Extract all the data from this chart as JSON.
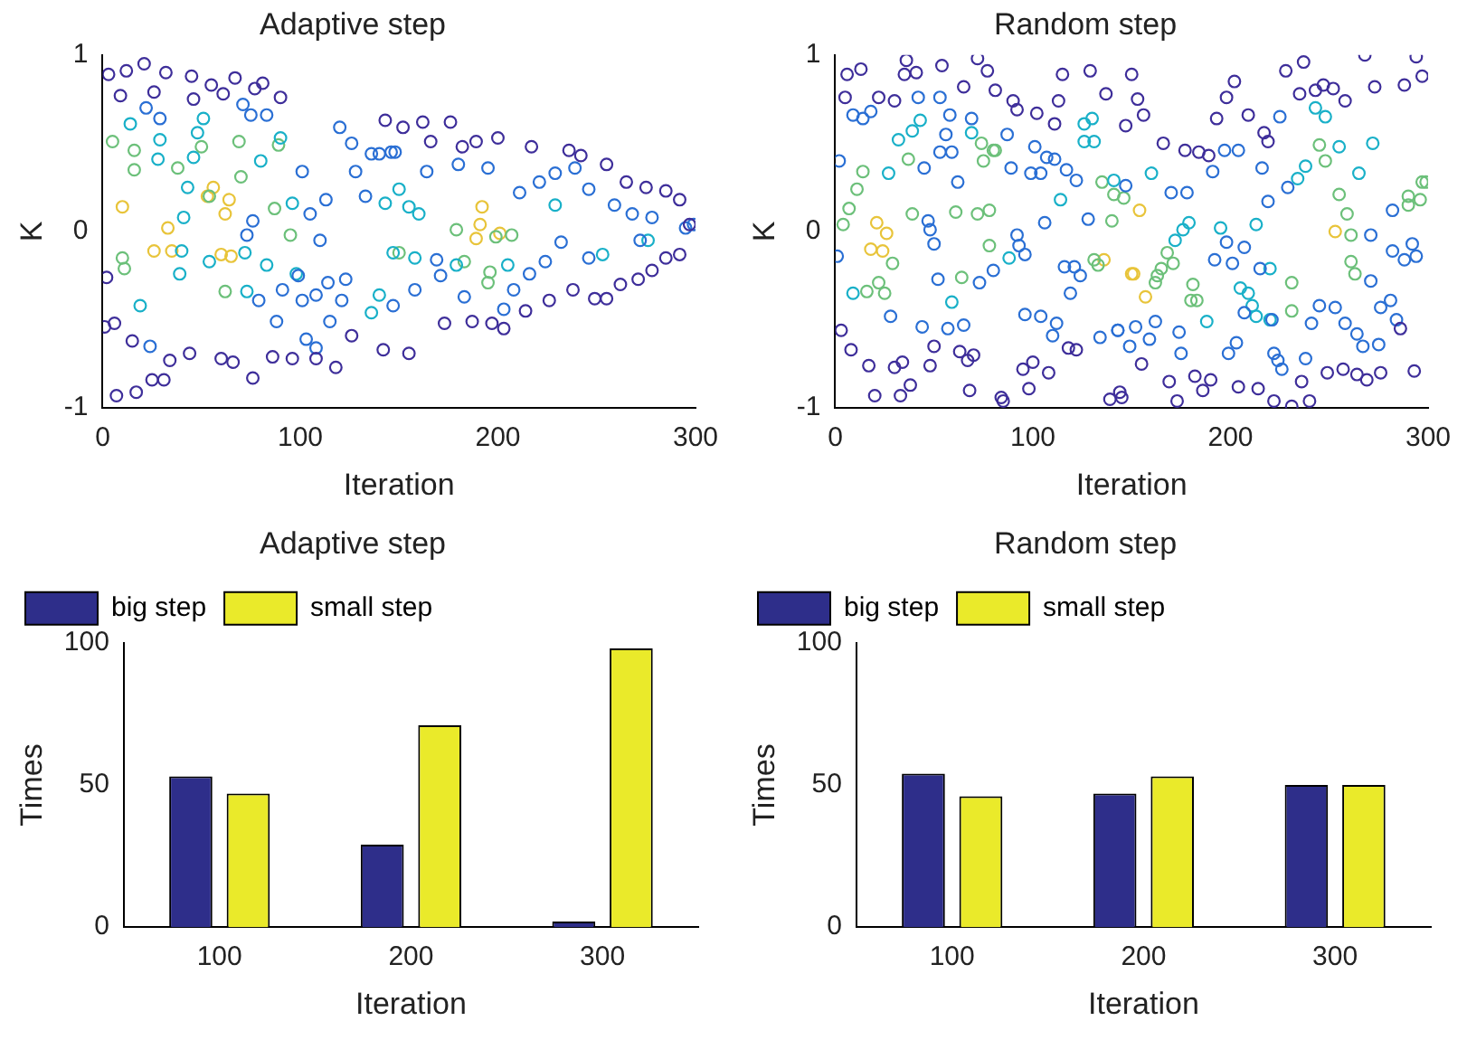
{
  "chart_data": [
    {
      "type": "scatter",
      "title": "Adaptive step",
      "xlabel": "Iteration",
      "ylabel": "K",
      "xlim": [
        0,
        300
      ],
      "ylim": [
        -1,
        1
      ],
      "xticks": [
        0,
        100,
        200,
        300
      ],
      "yticks": [
        -1,
        0,
        1
      ],
      "grid": false,
      "legend": false,
      "marker": "circle",
      "series": [
        {
          "color": "#3e2e9a",
          "x": [
            3,
            12,
            21,
            32,
            45,
            55,
            67,
            81,
            77,
            61,
            26,
            9,
            46,
            90,
            7,
            17,
            25,
            31,
            44,
            34,
            15,
            60,
            76,
            66,
            86,
            96,
            108,
            118,
            126,
            1,
            6,
            2,
            143,
            152,
            162,
            176,
            166,
            182,
            189,
            200,
            217,
            236,
            242,
            255,
            265,
            275,
            285,
            292,
            297,
            173,
            187,
            197,
            203,
            214,
            226,
            238,
            249,
            255,
            262,
            271,
            278,
            285,
            292,
            142,
            155
          ],
          "values": [
            0.89,
            0.91,
            0.95,
            0.9,
            0.88,
            0.83,
            0.87,
            0.84,
            0.81,
            0.78,
            0.79,
            0.77,
            0.75,
            0.76,
            -0.93,
            -0.91,
            -0.84,
            -0.84,
            -0.69,
            -0.73,
            -0.62,
            -0.72,
            -0.83,
            -0.74,
            -0.71,
            -0.72,
            -0.72,
            -0.77,
            -0.59,
            -0.54,
            -0.52,
            -0.26,
            0.63,
            0.59,
            0.62,
            0.62,
            0.51,
            0.48,
            0.51,
            0.53,
            0.48,
            0.46,
            0.43,
            0.38,
            0.28,
            0.25,
            0.23,
            0.18,
            0.04,
            -0.52,
            -0.51,
            -0.52,
            -0.55,
            -0.45,
            -0.39,
            -0.33,
            -0.38,
            -0.38,
            -0.3,
            -0.27,
            -0.22,
            -0.15,
            -0.13,
            -0.67,
            -0.69
          ]
        },
        {
          "color": "#2a6fd4",
          "x": [
            22,
            29,
            71,
            75,
            83,
            101,
            120,
            126,
            136,
            148,
            128,
            133,
            113,
            105,
            76,
            73,
            110,
            99,
            114,
            123,
            121,
            108,
            101,
            91,
            79,
            88,
            115,
            103,
            108,
            24,
            140,
            146,
            180,
            195,
            164,
            211,
            221,
            229,
            239,
            246,
            259,
            268,
            278,
            295,
            299,
            232,
            224,
            216,
            208,
            203,
            183,
            171,
            169,
            158,
            147,
            246,
            272
          ],
          "values": [
            0.7,
            0.64,
            0.72,
            0.66,
            0.66,
            0.34,
            0.59,
            0.5,
            0.44,
            0.45,
            0.34,
            0.2,
            0.18,
            0.1,
            0.06,
            -0.02,
            -0.05,
            -0.25,
            -0.29,
            -0.27,
            -0.39,
            -0.36,
            -0.39,
            -0.33,
            -0.39,
            -0.51,
            -0.51,
            -0.61,
            -0.66,
            -0.65,
            0.44,
            0.45,
            0.38,
            0.36,
            0.34,
            0.22,
            0.28,
            0.33,
            0.36,
            0.24,
            0.15,
            0.1,
            0.08,
            0.02,
            0.04,
            -0.06,
            -0.17,
            -0.24,
            -0.33,
            -0.44,
            -0.37,
            -0.25,
            -0.16,
            -0.33,
            -0.42,
            -0.15,
            -0.05
          ]
        },
        {
          "color": "#19b0c8",
          "x": [
            14,
            29,
            51,
            48,
            28,
            46,
            80,
            90,
            43,
            41,
            40,
            39,
            54,
            73,
            83,
            98,
            140,
            136,
            19,
            72,
            96,
            150,
            143,
            160,
            147,
            158,
            179,
            205,
            229,
            253,
            276,
            155
          ],
          "values": [
            0.61,
            0.52,
            0.64,
            0.56,
            0.41,
            0.42,
            0.4,
            0.53,
            0.25,
            0.08,
            -0.11,
            -0.24,
            -0.17,
            -0.34,
            -0.19,
            -0.24,
            -0.36,
            -0.46,
            -0.42,
            -0.12,
            0.16,
            0.24,
            0.16,
            0.1,
            -0.12,
            -0.15,
            -0.19,
            -0.19,
            0.15,
            -0.13,
            -0.05,
            0.14
          ]
        },
        {
          "color": "#6cc07a",
          "x": [
            5,
            16,
            38,
            50,
            69,
            89,
            70,
            95,
            10,
            11,
            62,
            150,
            16,
            87,
            54,
            179,
            195,
            196,
            183,
            207,
            199
          ],
          "values": [
            0.51,
            0.46,
            0.36,
            0.48,
            0.51,
            0.49,
            0.31,
            -0.02,
            -0.15,
            -0.21,
            -0.34,
            -0.12,
            0.35,
            0.13,
            0.2,
            0.01,
            -0.29,
            -0.23,
            -0.17,
            -0.02,
            -0.03
          ]
        },
        {
          "color": "#e8c43a",
          "x": [
            10,
            56,
            64,
            62,
            33,
            26,
            35,
            60,
            65,
            53,
            192,
            191,
            189,
            201
          ],
          "values": [
            0.14,
            0.25,
            0.18,
            0.1,
            0.02,
            -0.11,
            -0.11,
            -0.13,
            -0.14,
            0.2,
            0.14,
            0.04,
            -0.04,
            -0.01
          ]
        }
      ]
    },
    {
      "type": "scatter",
      "title": "Random step",
      "xlabel": "Iteration",
      "ylabel": "K",
      "xlim": [
        0,
        300
      ],
      "ylim": [
        -1,
        1
      ],
      "xticks": [
        0,
        100,
        200,
        300
      ],
      "yticks": [
        -1,
        0,
        1
      ],
      "grid": false,
      "legend": false,
      "marker": "circle",
      "series": [
        {
          "color": "#3e2e9a",
          "x": [
            6,
            13,
            36,
            41,
            54,
            72,
            77,
            35,
            5,
            22,
            30,
            65,
            81,
            90,
            92,
            115,
            129,
            137,
            113,
            102,
            111,
            3,
            8,
            17,
            30,
            34,
            38,
            48,
            50,
            63,
            67,
            70,
            68,
            20,
            33,
            84,
            85,
            98,
            95,
            100,
            108,
            118,
            122,
            144,
            139,
            150,
            153,
            156,
            147,
            166,
            177,
            184,
            189,
            202,
            198,
            193,
            209,
            217,
            219,
            228,
            237,
            235,
            243,
            247,
            252,
            258,
            268,
            273,
            288,
            294,
            297,
            155,
            145,
            169,
            173,
            182,
            186,
            190,
            204,
            214,
            222,
            231,
            240,
            236,
            249,
            257,
            264,
            269,
            276,
            293,
            286
          ],
          "values": [
            0.89,
            0.92,
            0.97,
            0.9,
            0.94,
            0.98,
            0.91,
            0.89,
            0.76,
            0.76,
            0.74,
            0.82,
            0.8,
            0.74,
            0.69,
            0.89,
            0.91,
            0.78,
            0.74,
            0.67,
            0.61,
            -0.56,
            -0.67,
            -0.76,
            -0.77,
            -0.74,
            -0.87,
            -0.76,
            -0.65,
            -0.68,
            -0.73,
            -0.7,
            -0.9,
            -0.93,
            -0.93,
            -0.94,
            -0.96,
            -0.89,
            -0.78,
            -0.74,
            -0.8,
            -0.66,
            -0.67,
            -0.91,
            -0.95,
            0.89,
            0.75,
            0.66,
            0.6,
            0.5,
            0.46,
            0.45,
            0.43,
            0.85,
            0.76,
            0.64,
            0.66,
            0.56,
            0.51,
            0.91,
            0.96,
            0.78,
            0.8,
            0.83,
            0.81,
            0.74,
            1.0,
            0.82,
            0.83,
            0.99,
            0.88,
            -0.75,
            -0.94,
            -0.85,
            -0.96,
            -0.82,
            -0.9,
            -0.84,
            -0.88,
            -0.89,
            -0.96,
            -0.99,
            -0.96,
            -0.85,
            -0.8,
            -0.78,
            -0.81,
            -0.84,
            -0.8,
            -0.79,
            -0.55
          ]
        },
        {
          "color": "#2a6fd4",
          "x": [
            9,
            14,
            18,
            42,
            53,
            58,
            69,
            56,
            53,
            59,
            45,
            2,
            62,
            89,
            99,
            104,
            101,
            107,
            111,
            117,
            122,
            87,
            47,
            48,
            50,
            92,
            93,
            96,
            106,
            128,
            116,
            121,
            124,
            119,
            73,
            80,
            52,
            28,
            44,
            57,
            65,
            96,
            104,
            112,
            110,
            134,
            143,
            1,
            147,
            170,
            178,
            191,
            216,
            225,
            229,
            219,
            197,
            204,
            282,
            271,
            282,
            292,
            294,
            288,
            271,
            281,
            276,
            284,
            275,
            267,
            264,
            258,
            253,
            245,
            241,
            238,
            226,
            222,
            224,
            199,
            203,
            175,
            174,
            162,
            159,
            149,
            152,
            143,
            221,
            207,
            215,
            201,
            192,
            207,
            198
          ],
          "values": [
            0.66,
            0.64,
            0.68,
            0.76,
            0.76,
            0.66,
            0.64,
            0.55,
            0.45,
            0.45,
            0.36,
            0.4,
            0.28,
            0.36,
            0.33,
            0.33,
            0.48,
            0.42,
            0.41,
            0.35,
            0.29,
            0.55,
            0.06,
            0.01,
            -0.07,
            -0.02,
            -0.08,
            -0.13,
            0.05,
            0.07,
            -0.2,
            -0.2,
            -0.25,
            -0.35,
            -0.29,
            -0.22,
            -0.27,
            -0.48,
            -0.54,
            -0.55,
            -0.53,
            -0.47,
            -0.48,
            -0.52,
            -0.59,
            -0.6,
            -0.56,
            -0.14,
            0.26,
            0.22,
            0.22,
            0.34,
            0.36,
            0.65,
            0.25,
            0.17,
            0.46,
            0.46,
            0.12,
            -0.02,
            -0.11,
            -0.07,
            -0.14,
            -0.16,
            -0.28,
            -0.39,
            -0.43,
            -0.5,
            -0.64,
            -0.65,
            -0.58,
            -0.52,
            -0.43,
            -0.42,
            -0.52,
            -0.72,
            -0.78,
            -0.69,
            -0.73,
            -0.69,
            -0.63,
            -0.69,
            -0.57,
            -0.51,
            -0.61,
            -0.65,
            -0.54,
            -0.56,
            -0.5,
            -0.46,
            -0.21,
            -0.18,
            -0.16,
            -0.09,
            -0.06
          ]
        },
        {
          "color": "#19b0c8",
          "x": [
            32,
            39,
            43,
            69,
            126,
            130,
            126,
            131,
            27,
            114,
            59,
            9,
            88,
            160,
            179,
            176,
            172,
            195,
            213,
            234,
            238,
            243,
            248,
            255,
            272,
            265,
            205,
            209,
            211,
            213,
            220,
            220,
            188,
            141
          ],
          "values": [
            0.52,
            0.57,
            0.63,
            0.56,
            0.61,
            0.64,
            0.51,
            0.51,
            0.33,
            0.18,
            -0.4,
            -0.35,
            -0.15,
            0.33,
            0.05,
            0.01,
            -0.05,
            0.02,
            0.04,
            0.3,
            0.37,
            0.7,
            0.65,
            0.48,
            0.5,
            0.33,
            -0.32,
            -0.35,
            -0.42,
            -0.48,
            -0.21,
            -0.5,
            -0.51,
            0.29
          ]
        },
        {
          "color": "#6cc07a",
          "x": [
            37,
            14,
            11,
            7,
            4,
            39,
            61,
            72,
            78,
            29,
            64,
            25,
            135,
            141,
            74,
            80,
            75,
            81,
            78,
            16,
            22,
            131,
            140,
            133,
            168,
            171,
            165,
            162,
            180,
            183,
            231,
            231,
            261,
            263,
            297,
            299,
            296,
            146,
            245,
            248,
            255,
            259,
            261,
            290,
            290,
            163,
            181
          ],
          "values": [
            0.41,
            0.34,
            0.24,
            0.13,
            0.04,
            0.1,
            0.11,
            0.1,
            -0.08,
            -0.18,
            -0.26,
            -0.35,
            0.28,
            0.21,
            0.5,
            0.46,
            0.4,
            0.46,
            0.12,
            -0.34,
            -0.29,
            -0.16,
            0.06,
            -0.19,
            -0.12,
            -0.18,
            -0.21,
            -0.29,
            -0.39,
            -0.39,
            -0.29,
            -0.45,
            -0.02,
            -0.24,
            0.28,
            0.28,
            0.18,
            0.19,
            0.49,
            0.4,
            0.21,
            0.1,
            -0.17,
            0.2,
            0.15,
            -0.25,
            -0.3
          ]
        },
        {
          "color": "#e8c43a",
          "x": [
            21,
            26,
            18,
            24,
            136,
            150,
            154,
            151,
            157,
            253
          ],
          "values": [
            0.05,
            -0.01,
            -0.1,
            -0.11,
            -0.16,
            -0.24,
            0.12,
            -0.24,
            -0.37,
            0.0
          ]
        }
      ]
    },
    {
      "type": "bar",
      "title": "Adaptive step",
      "xlabel": "Iteration",
      "ylabel": "Times",
      "categories": [
        "100",
        "200",
        "300"
      ],
      "ylim": [
        0,
        100
      ],
      "yticks": [
        0,
        50,
        100
      ],
      "grid": false,
      "legend": "top left",
      "series": [
        {
          "name": "big step",
          "color": "#2e2e8a",
          "values": [
            53,
            29,
            2
          ]
        },
        {
          "name": "small step",
          "color": "#eaea2a",
          "values": [
            47,
            71,
            98
          ]
        }
      ]
    },
    {
      "type": "bar",
      "title": "Random step",
      "xlabel": "Iteration",
      "ylabel": "Times",
      "categories": [
        "100",
        "200",
        "300"
      ],
      "ylim": [
        0,
        100
      ],
      "yticks": [
        0,
        50,
        100
      ],
      "grid": false,
      "legend": "top left",
      "series": [
        {
          "name": "big step",
          "color": "#2e2e8a",
          "values": [
            54,
            47,
            50
          ]
        },
        {
          "name": "small step",
          "color": "#eaea2a",
          "values": [
            46,
            53,
            50
          ]
        }
      ]
    }
  ]
}
